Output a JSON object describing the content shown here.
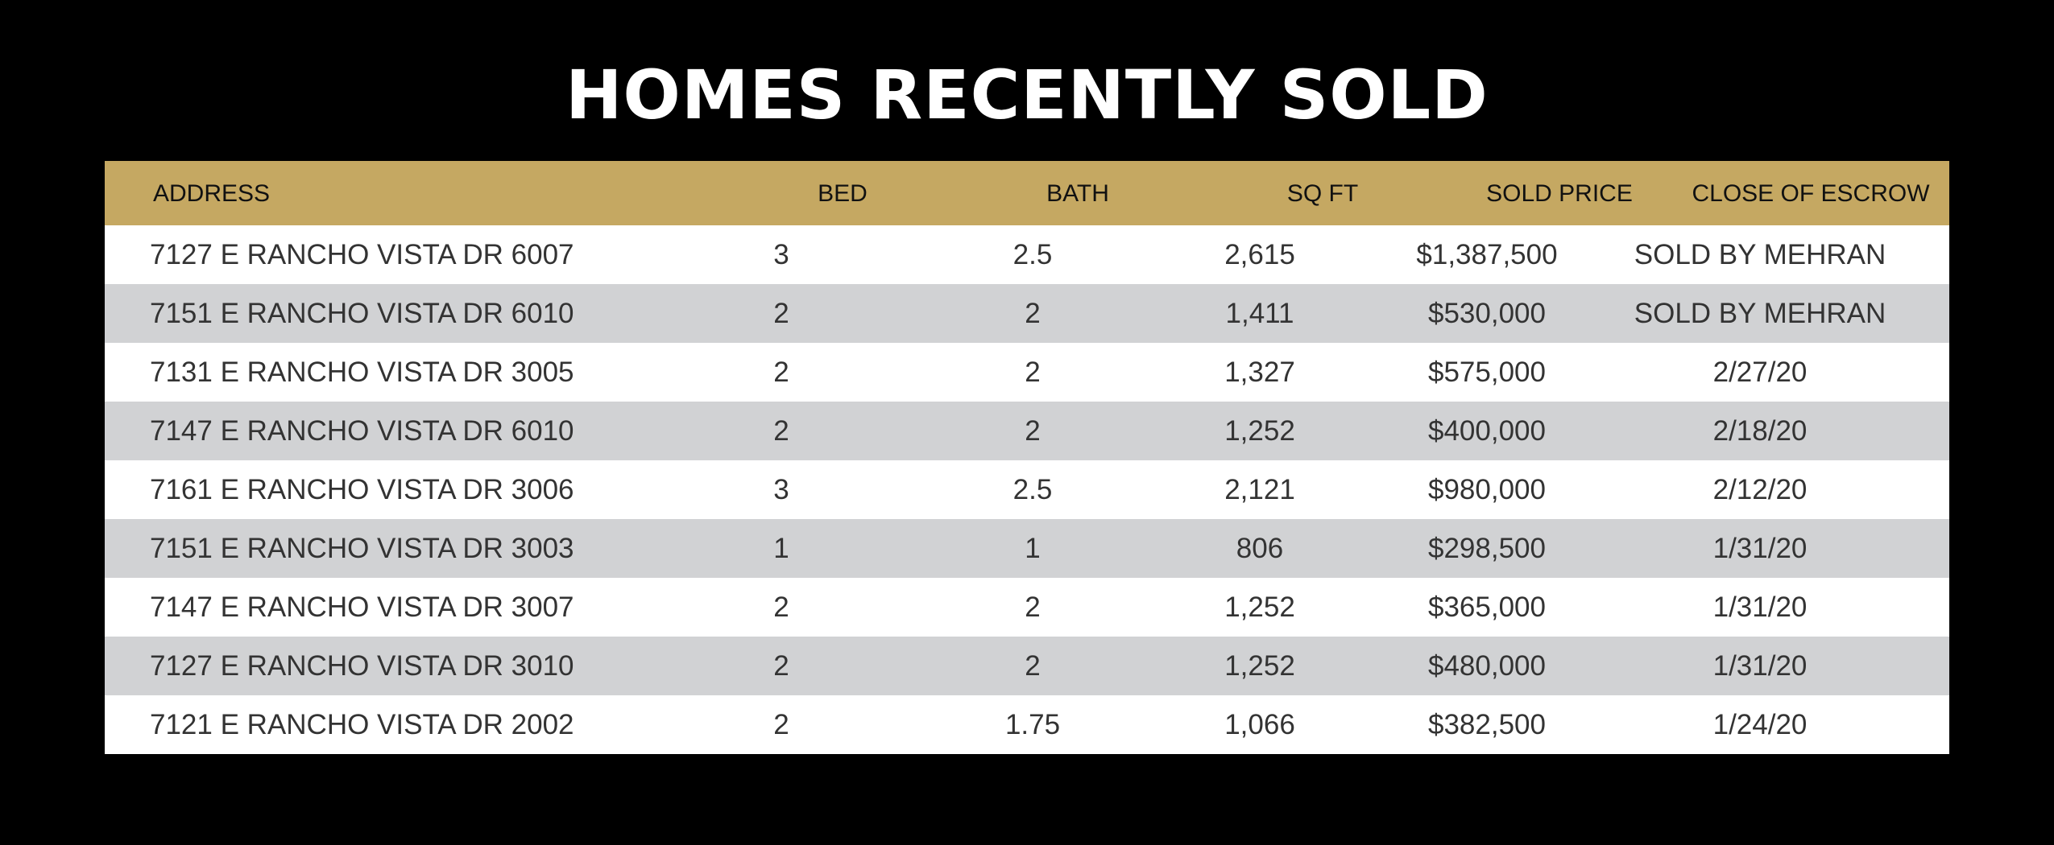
{
  "title": "HOMES RECENTLY SOLD",
  "columns": {
    "address": "ADDRESS",
    "bed": "BED",
    "bath": "BATH",
    "sqft": "SQ FT",
    "sold_price": "SOLD PRICE",
    "close_of_escrow": "CLOSE OF ESCROW"
  },
  "rows": [
    {
      "address": "7127 E RANCHO VISTA DR 6007",
      "bed": "3",
      "bath": "2.5",
      "sqft": "2,615",
      "sold_price": "$1,387,500",
      "close_of_escrow": "SOLD BY MEHRAN"
    },
    {
      "address": "7151 E RANCHO VISTA DR 6010",
      "bed": "2",
      "bath": "2",
      "sqft": "1,411",
      "sold_price": "$530,000",
      "close_of_escrow": "SOLD BY MEHRAN"
    },
    {
      "address": "7131 E RANCHO VISTA DR 3005",
      "bed": "2",
      "bath": "2",
      "sqft": "1,327",
      "sold_price": "$575,000",
      "close_of_escrow": "2/27/20"
    },
    {
      "address": "7147 E RANCHO VISTA DR 6010",
      "bed": "2",
      "bath": "2",
      "sqft": "1,252",
      "sold_price": "$400,000",
      "close_of_escrow": "2/18/20"
    },
    {
      "address": "7161 E RANCHO VISTA DR 3006",
      "bed": "3",
      "bath": "2.5",
      "sqft": "2,121",
      "sold_price": "$980,000",
      "close_of_escrow": "2/12/20"
    },
    {
      "address": "7151 E RANCHO VISTA DR 3003",
      "bed": "1",
      "bath": "1",
      "sqft": "806",
      "sold_price": "$298,500",
      "close_of_escrow": "1/31/20"
    },
    {
      "address": "7147 E RANCHO VISTA DR 3007",
      "bed": "2",
      "bath": "2",
      "sqft": "1,252",
      "sold_price": "$365,000",
      "close_of_escrow": "1/31/20"
    },
    {
      "address": "7127 E RANCHO VISTA DR 3010",
      "bed": "2",
      "bath": "2",
      "sqft": "1,252",
      "sold_price": "$480,000",
      "close_of_escrow": "1/31/20"
    },
    {
      "address": "7121 E RANCHO VISTA DR 2002",
      "bed": "2",
      "bath": "1.75",
      "sqft": "1,066",
      "sold_price": "$382,500",
      "close_of_escrow": "1/24/20"
    }
  ],
  "colors": {
    "background": "#000000",
    "header": "#c5a862",
    "row_light": "#ffffff",
    "row_shaded": "#d1d2d4"
  }
}
